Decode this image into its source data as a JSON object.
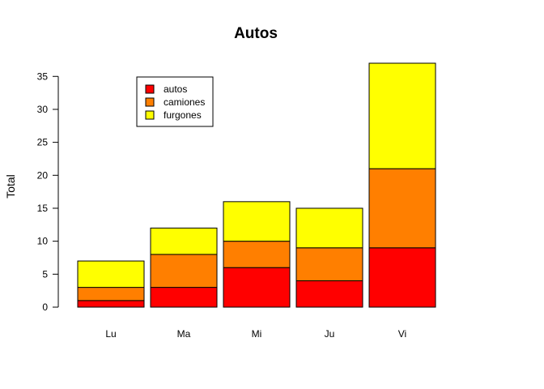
{
  "chart_data": {
    "type": "bar",
    "stacked": true,
    "title": "Autos",
    "xlabel": "",
    "ylabel": "Total",
    "ylim": [
      0,
      37
    ],
    "yticks": [
      0,
      5,
      10,
      15,
      20,
      25,
      30,
      35
    ],
    "categories": [
      "Lu",
      "Ma",
      "Mi",
      "Ju",
      "Vi"
    ],
    "series": [
      {
        "name": "autos",
        "color": "#ff0000",
        "values": [
          1,
          3,
          6,
          4,
          9
        ]
      },
      {
        "name": "camiones",
        "color": "#ff7f00",
        "values": [
          2,
          5,
          4,
          5,
          12
        ]
      },
      {
        "name": "furgones",
        "color": "#ffff00",
        "values": [
          4,
          4,
          6,
          6,
          16
        ]
      }
    ],
    "legend_position": "top-left",
    "grid": false
  }
}
